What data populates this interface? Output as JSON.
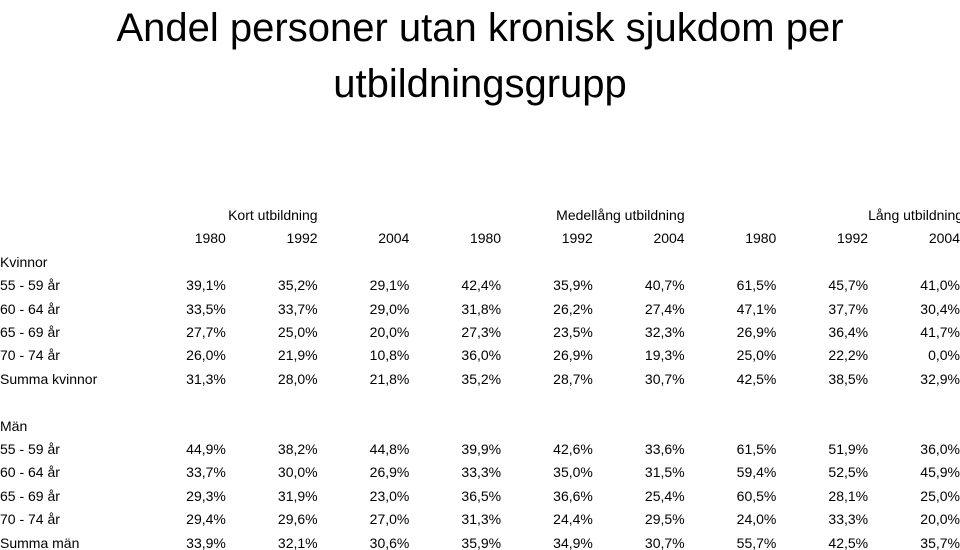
{
  "title": "Andel personer utan kronisk sjukdom per utbildningsgrupp",
  "groups": [
    "Kort utbildning",
    "Medellång utbildning",
    "Lång utbildning"
  ],
  "years": [
    "1980",
    "1992",
    "2004",
    "1980",
    "1992",
    "2004",
    "1980",
    "1992",
    "2004"
  ],
  "sections": [
    {
      "heading": "Kvinnor",
      "rows": [
        {
          "label": "55 - 59 år",
          "values": [
            "39,1%",
            "35,2%",
            "29,1%",
            "42,4%",
            "35,9%",
            "40,7%",
            "61,5%",
            "45,7%",
            "41,0%"
          ]
        },
        {
          "label": "60 - 64 år",
          "values": [
            "33,5%",
            "33,7%",
            "29,0%",
            "31,8%",
            "26,2%",
            "27,4%",
            "47,1%",
            "37,7%",
            "30,4%"
          ]
        },
        {
          "label": "65 - 69 år",
          "values": [
            "27,7%",
            "25,0%",
            "20,0%",
            "27,3%",
            "23,5%",
            "32,3%",
            "26,9%",
            "36,4%",
            "41,7%"
          ]
        },
        {
          "label": "70 - 74 år",
          "values": [
            "26,0%",
            "21,9%",
            "10,8%",
            "36,0%",
            "26,9%",
            "19,3%",
            "25,0%",
            "22,2%",
            "0,0%"
          ]
        },
        {
          "label": "Summa kvinnor",
          "values": [
            "31,3%",
            "28,0%",
            "21,8%",
            "35,2%",
            "28,7%",
            "30,7%",
            "42,5%",
            "38,5%",
            "32,9%"
          ]
        }
      ]
    },
    {
      "heading": "Män",
      "rows": [
        {
          "label": "55 - 59 år",
          "values": [
            "44,9%",
            "38,2%",
            "44,8%",
            "39,9%",
            "42,6%",
            "33,6%",
            "61,5%",
            "51,9%",
            "36,0%"
          ]
        },
        {
          "label": "60 - 64 år",
          "values": [
            "33,7%",
            "30,0%",
            "26,9%",
            "33,3%",
            "35,0%",
            "31,5%",
            "59,4%",
            "52,5%",
            "45,9%"
          ]
        },
        {
          "label": "65 - 69 år",
          "values": [
            "29,3%",
            "31,9%",
            "23,0%",
            "36,5%",
            "36,6%",
            "25,4%",
            "60,5%",
            "28,1%",
            "25,0%"
          ]
        },
        {
          "label": "70 - 74 år",
          "values": [
            "29,4%",
            "29,6%",
            "27,0%",
            "31,3%",
            "24,4%",
            "29,5%",
            "24,0%",
            "33,3%",
            "20,0%"
          ]
        },
        {
          "label": "Summa män",
          "values": [
            "33,9%",
            "32,1%",
            "30,6%",
            "35,9%",
            "34,9%",
            "30,7%",
            "55,7%",
            "42,5%",
            "35,7%"
          ]
        }
      ]
    }
  ]
}
